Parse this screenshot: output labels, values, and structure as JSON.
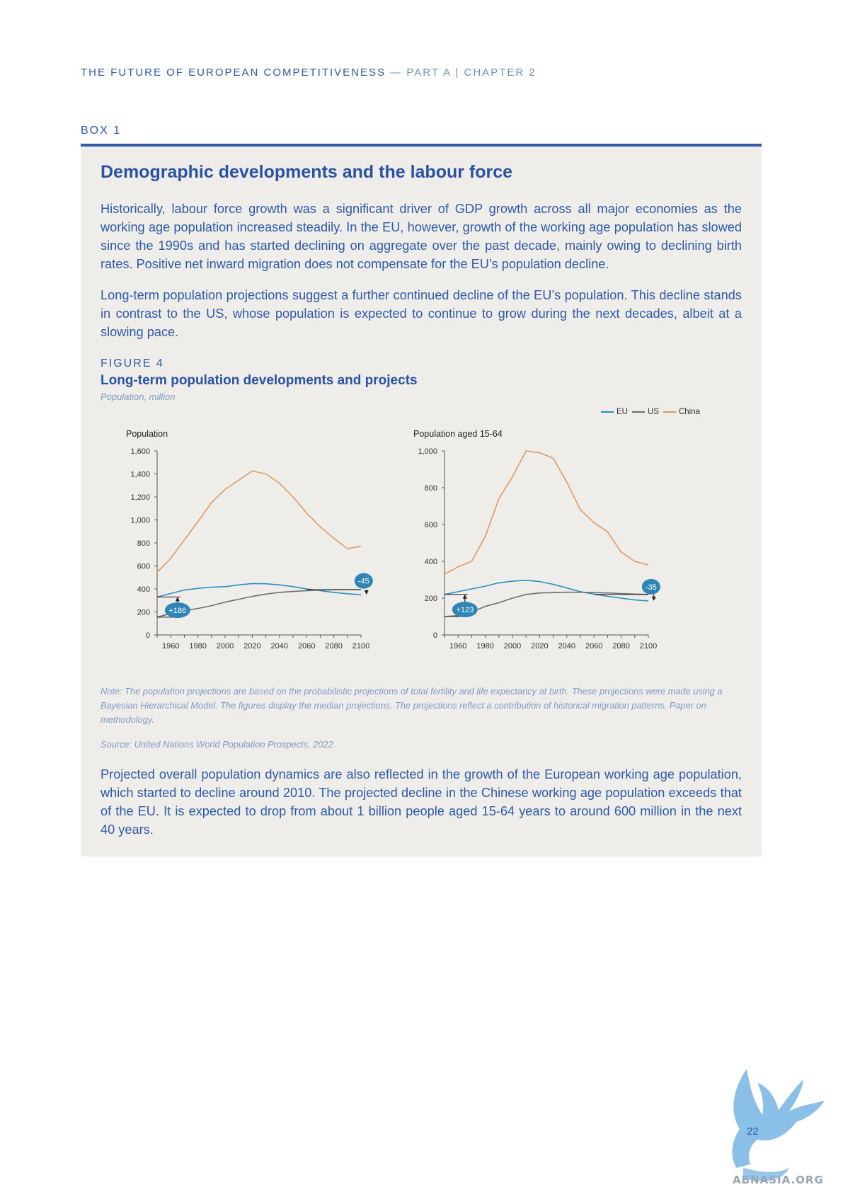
{
  "header": {
    "title": "THE FUTURE OF EUROPEAN COMPETITIVENESS",
    "subtitle": "— PART A | CHAPTER 2"
  },
  "box": {
    "label": "BOX 1",
    "title": "Demographic developments and the labour force",
    "paragraphs": [
      "Historically, labour force growth was a significant driver of GDP growth across all major economies as the working age population increased steadily. In the EU, however, growth of the working age population has slowed since the 1990s and has started declining on aggregate over the past decade, mainly owing to declining birth rates. Positive net inward migration does not compensate for the EU’s population decline.",
      "Long-term population projections suggest a further continued decline of the EU’s population. This decline stands in contrast to the US, whose population is expected to continue to grow during the next decades, albeit at a slowing pace.",
      "Projected overall population dynamics are also reflected in the growth of the European working age population, which started to decline around 2010. The projected decline in the Chinese working age population exceeds that of the EU. It is expected to drop from about 1 billion people aged 15-64 years to around 600 million in the next 40 years."
    ]
  },
  "figure": {
    "label": "FIGURE 4",
    "title": "Long-term population developments and projects",
    "subtitle": "Population, million",
    "legend": [
      "EU",
      "US",
      "China"
    ],
    "note": "Note: The population projections are based on the probabilistic projections of total fertility and life expectancy at birth. These projections were made using a Bayesian Hierarchical Model. The figures display the median projections. The projections reflect a contribution of historical migration patterns. Paper on methodology.",
    "source": "Source: United Nations World Population Prospects, 2022."
  },
  "colors": {
    "EU": "#2b8fc0",
    "US": "#6f6f6f",
    "China": "#e09a5f"
  },
  "chart_data": [
    {
      "type": "line",
      "title": "Population",
      "ylim": [
        0,
        1600
      ],
      "yticks": [
        0,
        200,
        400,
        600,
        800,
        1000,
        1200,
        1400,
        1600
      ],
      "ytick_labels": [
        "0",
        "200",
        "400",
        "600",
        "800",
        "1,000",
        "1,200",
        "1,400",
        "1,600"
      ],
      "xlim": [
        1950,
        2100
      ],
      "xticks": [
        1960,
        1980,
        2000,
        2020,
        2040,
        2060,
        2080,
        2100
      ],
      "x": [
        1950,
        1960,
        1970,
        1980,
        1990,
        2000,
        2010,
        2020,
        2030,
        2040,
        2050,
        2060,
        2070,
        2080,
        2090,
        2100
      ],
      "series": [
        {
          "name": "EU",
          "values": [
            330,
            360,
            390,
            405,
            415,
            420,
            435,
            447,
            445,
            435,
            420,
            400,
            385,
            370,
            358,
            350
          ]
        },
        {
          "name": "US",
          "values": [
            155,
            186,
            210,
            230,
            255,
            285,
            310,
            335,
            355,
            370,
            378,
            385,
            390,
            393,
            394,
            394
          ]
        },
        {
          "name": "China",
          "values": [
            545,
            665,
            825,
            985,
            1150,
            1265,
            1345,
            1425,
            1400,
            1320,
            1200,
            1060,
            940,
            840,
            750,
            770
          ]
        }
      ],
      "annotations": [
        {
          "label": "+186",
          "x": 1965,
          "y": 215
        },
        {
          "label": "-45",
          "x": 2102,
          "y": 470
        }
      ]
    },
    {
      "type": "line",
      "title": "Population aged 15-64",
      "ylim": [
        0,
        1000
      ],
      "yticks": [
        0,
        200,
        400,
        600,
        800,
        1000
      ],
      "ytick_labels": [
        "0",
        "200",
        "400",
        "600",
        "800",
        "1,000"
      ],
      "xlim": [
        1950,
        2100
      ],
      "xticks": [
        1960,
        1980,
        2000,
        2020,
        2040,
        2060,
        2080,
        2100
      ],
      "x": [
        1950,
        1960,
        1970,
        1980,
        1990,
        2000,
        2010,
        2020,
        2030,
        2040,
        2050,
        2060,
        2070,
        2080,
        2090,
        2100
      ],
      "series": [
        {
          "name": "EU",
          "values": [
            220,
            235,
            250,
            265,
            283,
            292,
            297,
            290,
            275,
            255,
            235,
            222,
            210,
            200,
            190,
            185
          ]
        },
        {
          "name": "US",
          "values": [
            100,
            105,
            125,
            155,
            175,
            200,
            220,
            228,
            230,
            232,
            232,
            230,
            228,
            225,
            222,
            220
          ]
        },
        {
          "name": "China",
          "values": [
            330,
            370,
            400,
            535,
            740,
            860,
            1000,
            990,
            960,
            830,
            680,
            610,
            560,
            450,
            400,
            380
          ]
        }
      ],
      "annotations": [
        {
          "label": "+123",
          "x": 1965,
          "y": 138
        },
        {
          "label": "-35",
          "x": 2102,
          "y": 262
        }
      ]
    }
  ]
}
